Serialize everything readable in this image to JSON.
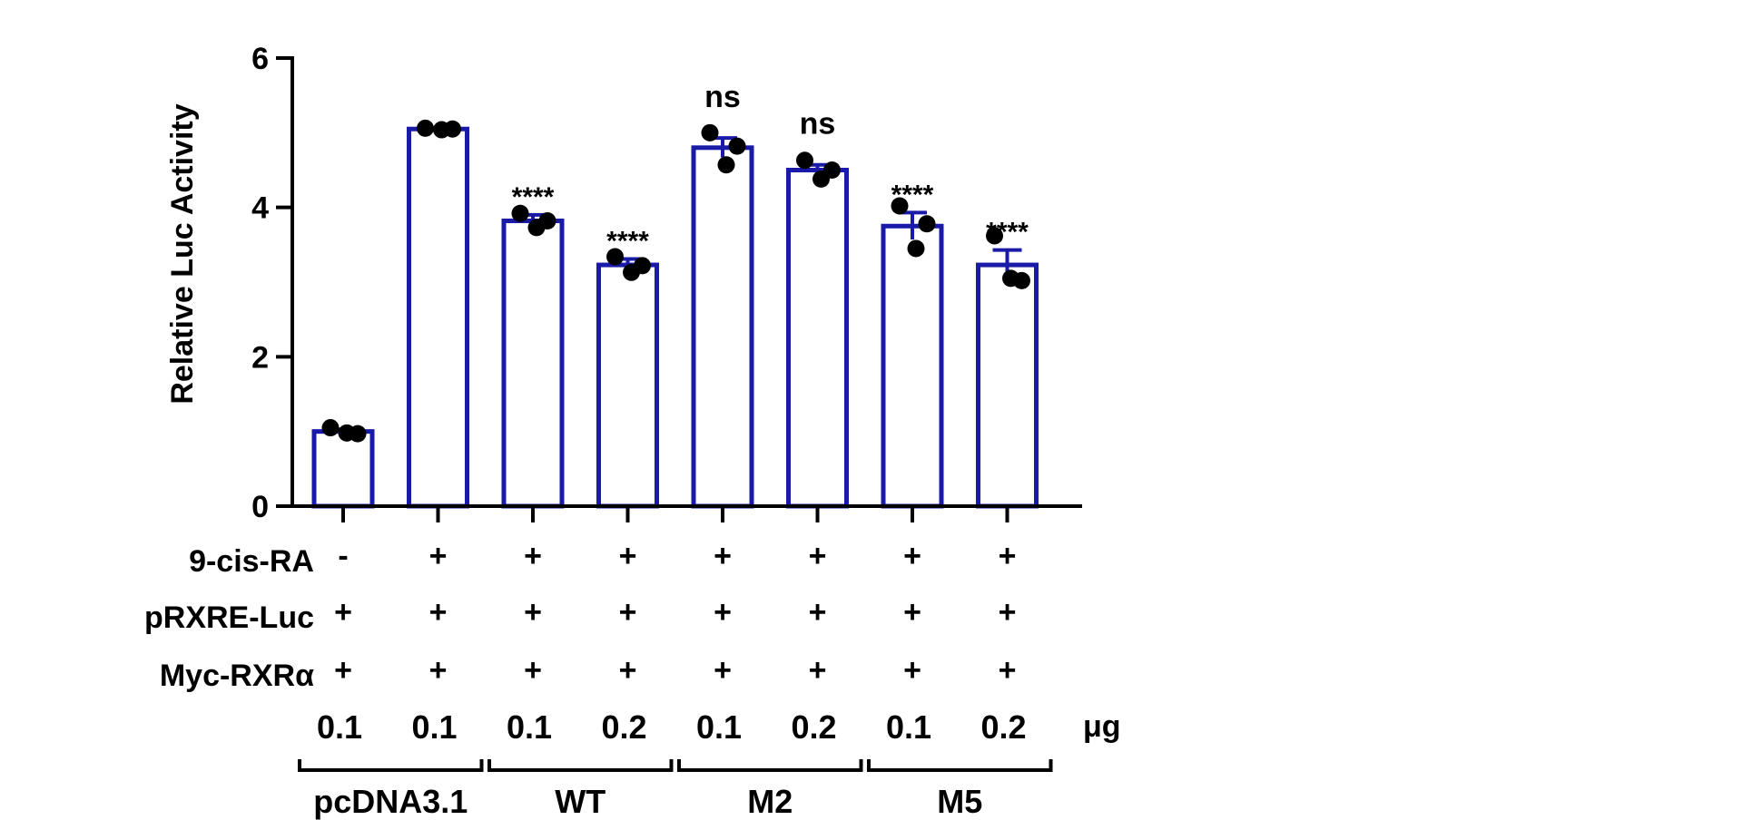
{
  "chart_data": {
    "type": "bar",
    "ylabel": "Relative Luc Activity",
    "ylim": [
      0,
      6
    ],
    "yticks": [
      0,
      2,
      4,
      6
    ],
    "bar_color": "#1a1aa8",
    "point_color": "#000000",
    "bars": [
      {
        "value": 1.0,
        "sem": 0.03,
        "points": [
          1.05,
          0.98,
          0.97
        ],
        "annotation": ""
      },
      {
        "value": 5.05,
        "sem": 0.01,
        "points": [
          5.06,
          5.04,
          5.05
        ],
        "annotation": ""
      },
      {
        "value": 3.82,
        "sem": 0.08,
        "points": [
          3.92,
          3.73,
          3.82
        ],
        "annotation": "****"
      },
      {
        "value": 3.23,
        "sem": 0.08,
        "points": [
          3.34,
          3.13,
          3.22
        ],
        "annotation": "****"
      },
      {
        "value": 4.8,
        "sem": 0.13,
        "points": [
          5.0,
          4.57,
          4.82
        ],
        "annotation": "ns"
      },
      {
        "value": 4.5,
        "sem": 0.07,
        "points": [
          4.63,
          4.38,
          4.5
        ],
        "annotation": "ns"
      },
      {
        "value": 3.75,
        "sem": 0.18,
        "points": [
          4.02,
          3.45,
          3.78
        ],
        "annotation": "****"
      },
      {
        "value": 3.23,
        "sem": 0.2,
        "points": [
          3.62,
          3.05,
          3.02
        ],
        "annotation": "****"
      }
    ],
    "conditions": [
      {
        "label": "9-cis-RA",
        "values": [
          "-",
          "+",
          "+",
          "+",
          "+",
          "+",
          "+",
          "+"
        ]
      },
      {
        "label": "pRXRE-Luc",
        "values": [
          "+",
          "+",
          "+",
          "+",
          "+",
          "+",
          "+",
          "+"
        ]
      },
      {
        "label": "Myc-RXRα",
        "values": [
          "+",
          "+",
          "+",
          "+",
          "+",
          "+",
          "+",
          "+"
        ]
      }
    ],
    "doses": [
      "0.1",
      "0.1",
      "0.1",
      "0.2",
      "0.1",
      "0.2",
      "0.1",
      "0.2"
    ],
    "dose_unit": "μg",
    "groups": [
      {
        "label": "pcDNA3.1",
        "bars": [
          0,
          1
        ]
      },
      {
        "label": "WT",
        "bars": [
          2,
          3
        ]
      },
      {
        "label": "M2",
        "bars": [
          4,
          5
        ]
      },
      {
        "label": "M5",
        "bars": [
          6,
          7
        ]
      }
    ]
  }
}
